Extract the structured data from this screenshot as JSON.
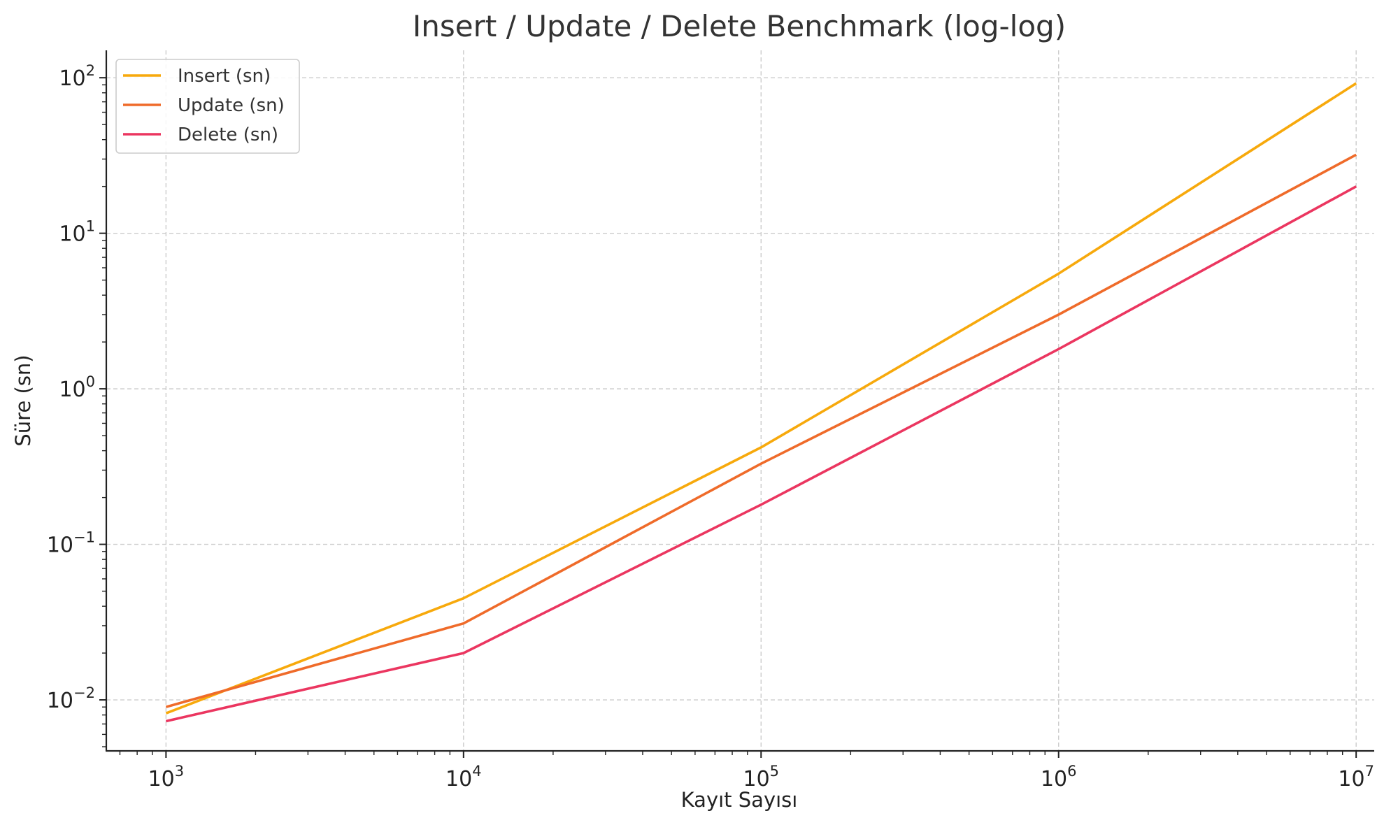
{
  "chart_data": {
    "type": "line",
    "title": "Insert / Update / Delete Benchmark (log-log)",
    "xlabel": "Kayıt Sayısı",
    "ylabel": "Süre (sn)",
    "x_scale": "log",
    "y_scale": "log",
    "x": [
      1000,
      10000,
      100000,
      1000000,
      10000000
    ],
    "xlim": [
      630,
      11500000
    ],
    "ylim": [
      0.0047,
      150
    ],
    "x_ticks": [
      {
        "value": 1000,
        "base": "10",
        "exp": "3"
      },
      {
        "value": 10000,
        "base": "10",
        "exp": "4"
      },
      {
        "value": 100000,
        "base": "10",
        "exp": "5"
      },
      {
        "value": 1000000,
        "base": "10",
        "exp": "6"
      },
      {
        "value": 10000000,
        "base": "10",
        "exp": "7"
      }
    ],
    "y_ticks": [
      {
        "value": 0.01,
        "base": "10",
        "exp": "−2"
      },
      {
        "value": 0.1,
        "base": "10",
        "exp": "−1"
      },
      {
        "value": 1,
        "base": "10",
        "exp": "0"
      },
      {
        "value": 10,
        "base": "10",
        "exp": "1"
      },
      {
        "value": 100,
        "base": "10",
        "exp": "2"
      }
    ],
    "grid": true,
    "legend_position": "top-left",
    "series": [
      {
        "name": "Insert (sn)",
        "color": "#f7a90c",
        "values": [
          0.0082,
          0.045,
          0.42,
          5.5,
          92
        ]
      },
      {
        "name": "Update (sn)",
        "color": "#ef6b2a",
        "values": [
          0.009,
          0.031,
          0.33,
          3.0,
          32
        ]
      },
      {
        "name": "Delete (sn)",
        "color": "#eb3660",
        "values": [
          0.0073,
          0.02,
          0.18,
          1.8,
          20
        ]
      }
    ]
  }
}
